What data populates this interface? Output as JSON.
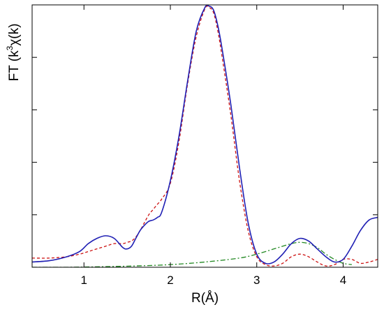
{
  "chart_data": {
    "type": "line",
    "title": "",
    "xlabel": "R(Å)",
    "ylabel_parts": {
      "prefix": "FT (k",
      "superscript": "3",
      "suffix": "χ(k)"
    },
    "xlim": [
      0.4,
      4.4
    ],
    "ylim": [
      0,
      1.0
    ],
    "x_ticks": [
      1,
      2,
      3,
      4
    ],
    "x_tick_labels": [
      "1",
      "2",
      "3",
      "4"
    ],
    "y_ticks": [
      0.2,
      0.4,
      0.6,
      0.8
    ],
    "y_tick_labels_shown": false,
    "grid": false,
    "legend": "none",
    "series": [
      {
        "color": "#1f1fb4",
        "dash": "solid",
        "x": [
          0.4,
          0.6,
          0.8,
          0.95,
          1.05,
          1.15,
          1.25,
          1.35,
          1.45,
          1.5,
          1.55,
          1.6,
          1.65,
          1.7,
          1.75,
          1.8,
          1.85,
          1.9,
          2.0,
          2.1,
          2.2,
          2.3,
          2.4,
          2.45,
          2.5,
          2.55,
          2.6,
          2.7,
          2.8,
          2.9,
          3.0,
          3.1,
          3.2,
          3.3,
          3.4,
          3.5,
          3.6,
          3.7,
          3.8,
          3.9,
          4.0,
          4.1,
          4.2,
          4.3,
          4.4
        ],
        "y": [
          0.02,
          0.025,
          0.04,
          0.06,
          0.09,
          0.11,
          0.12,
          0.11,
          0.075,
          0.07,
          0.08,
          0.11,
          0.14,
          0.16,
          0.175,
          0.18,
          0.19,
          0.21,
          0.33,
          0.5,
          0.71,
          0.9,
          0.99,
          0.995,
          0.98,
          0.92,
          0.83,
          0.62,
          0.38,
          0.17,
          0.05,
          0.015,
          0.02,
          0.05,
          0.09,
          0.11,
          0.1,
          0.07,
          0.04,
          0.02,
          0.03,
          0.08,
          0.14,
          0.18,
          0.19
        ]
      },
      {
        "color": "#cc1111",
        "dash": "4,3",
        "x": [
          0.4,
          0.6,
          0.8,
          0.95,
          1.05,
          1.15,
          1.25,
          1.35,
          1.45,
          1.5,
          1.55,
          1.6,
          1.65,
          1.7,
          1.75,
          1.8,
          1.85,
          1.9,
          2.0,
          2.1,
          2.2,
          2.3,
          2.4,
          2.45,
          2.5,
          2.55,
          2.6,
          2.7,
          2.8,
          2.9,
          3.0,
          3.1,
          3.2,
          3.3,
          3.4,
          3.5,
          3.6,
          3.7,
          3.8,
          3.9,
          4.0,
          4.1,
          4.2,
          4.3,
          4.4
        ],
        "y": [
          0.035,
          0.035,
          0.04,
          0.05,
          0.06,
          0.07,
          0.08,
          0.09,
          0.09,
          0.095,
          0.1,
          0.115,
          0.14,
          0.17,
          0.2,
          0.22,
          0.24,
          0.26,
          0.32,
          0.48,
          0.7,
          0.88,
          0.985,
          0.99,
          0.97,
          0.9,
          0.8,
          0.58,
          0.33,
          0.14,
          0.04,
          0.01,
          0.005,
          0.015,
          0.04,
          0.05,
          0.04,
          0.02,
          0.005,
          0.01,
          0.03,
          0.03,
          0.015,
          0.02,
          0.03
        ]
      },
      {
        "color": "#228822",
        "dash": "7,3,2,3",
        "x": [
          0.4,
          0.8,
          1.2,
          1.6,
          2.0,
          2.4,
          2.8,
          3.0,
          3.2,
          3.4,
          3.5,
          3.6,
          3.7,
          3.8,
          3.9,
          4.0,
          4.1
        ],
        "y": [
          0.0,
          0.0,
          0.002,
          0.005,
          0.01,
          0.02,
          0.035,
          0.05,
          0.07,
          0.09,
          0.095,
          0.09,
          0.075,
          0.05,
          0.03,
          0.015,
          0.01
        ]
      }
    ]
  }
}
